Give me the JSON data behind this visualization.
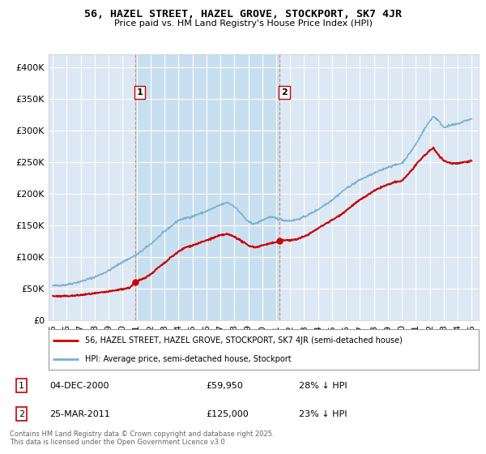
{
  "title": "56, HAZEL STREET, HAZEL GROVE, STOCKPORT, SK7 4JR",
  "subtitle": "Price paid vs. HM Land Registry's House Price Index (HPI)",
  "ylabel_ticks": [
    "£0",
    "£50K",
    "£100K",
    "£150K",
    "£200K",
    "£250K",
    "£300K",
    "£350K",
    "£400K"
  ],
  "ylim": [
    0,
    420000
  ],
  "xlim_start": 1994.7,
  "xlim_end": 2025.5,
  "legend_line1": "56, HAZEL STREET, HAZEL GROVE, STOCKPORT, SK7 4JR (semi-detached house)",
  "legend_line2": "HPI: Average price, semi-detached house, Stockport",
  "annotation1_date": "04-DEC-2000",
  "annotation1_price": "£59,950",
  "annotation1_hpi": "28% ↓ HPI",
  "annotation2_date": "25-MAR-2011",
  "annotation2_price": "£125,000",
  "annotation2_hpi": "23% ↓ HPI",
  "copyright": "Contains HM Land Registry data © Crown copyright and database right 2025.\nThis data is licensed under the Open Government Licence v3.0.",
  "line_color_red": "#cc0000",
  "line_color_blue": "#7ab0d4",
  "background_color": "#ffffff",
  "plot_bg_color": "#dce8f4",
  "shaded_bg_color": "#c8dff0",
  "grid_color": "#ffffff",
  "sale1_x": 2000.917,
  "sale1_y": 59950,
  "sale2_x": 2011.25,
  "sale2_y": 125000,
  "xticks": [
    1995,
    1996,
    1997,
    1998,
    1999,
    2000,
    2001,
    2002,
    2003,
    2004,
    2005,
    2006,
    2007,
    2008,
    2009,
    2010,
    2011,
    2012,
    2013,
    2014,
    2015,
    2016,
    2017,
    2018,
    2019,
    2020,
    2021,
    2022,
    2023,
    2024,
    2025
  ]
}
